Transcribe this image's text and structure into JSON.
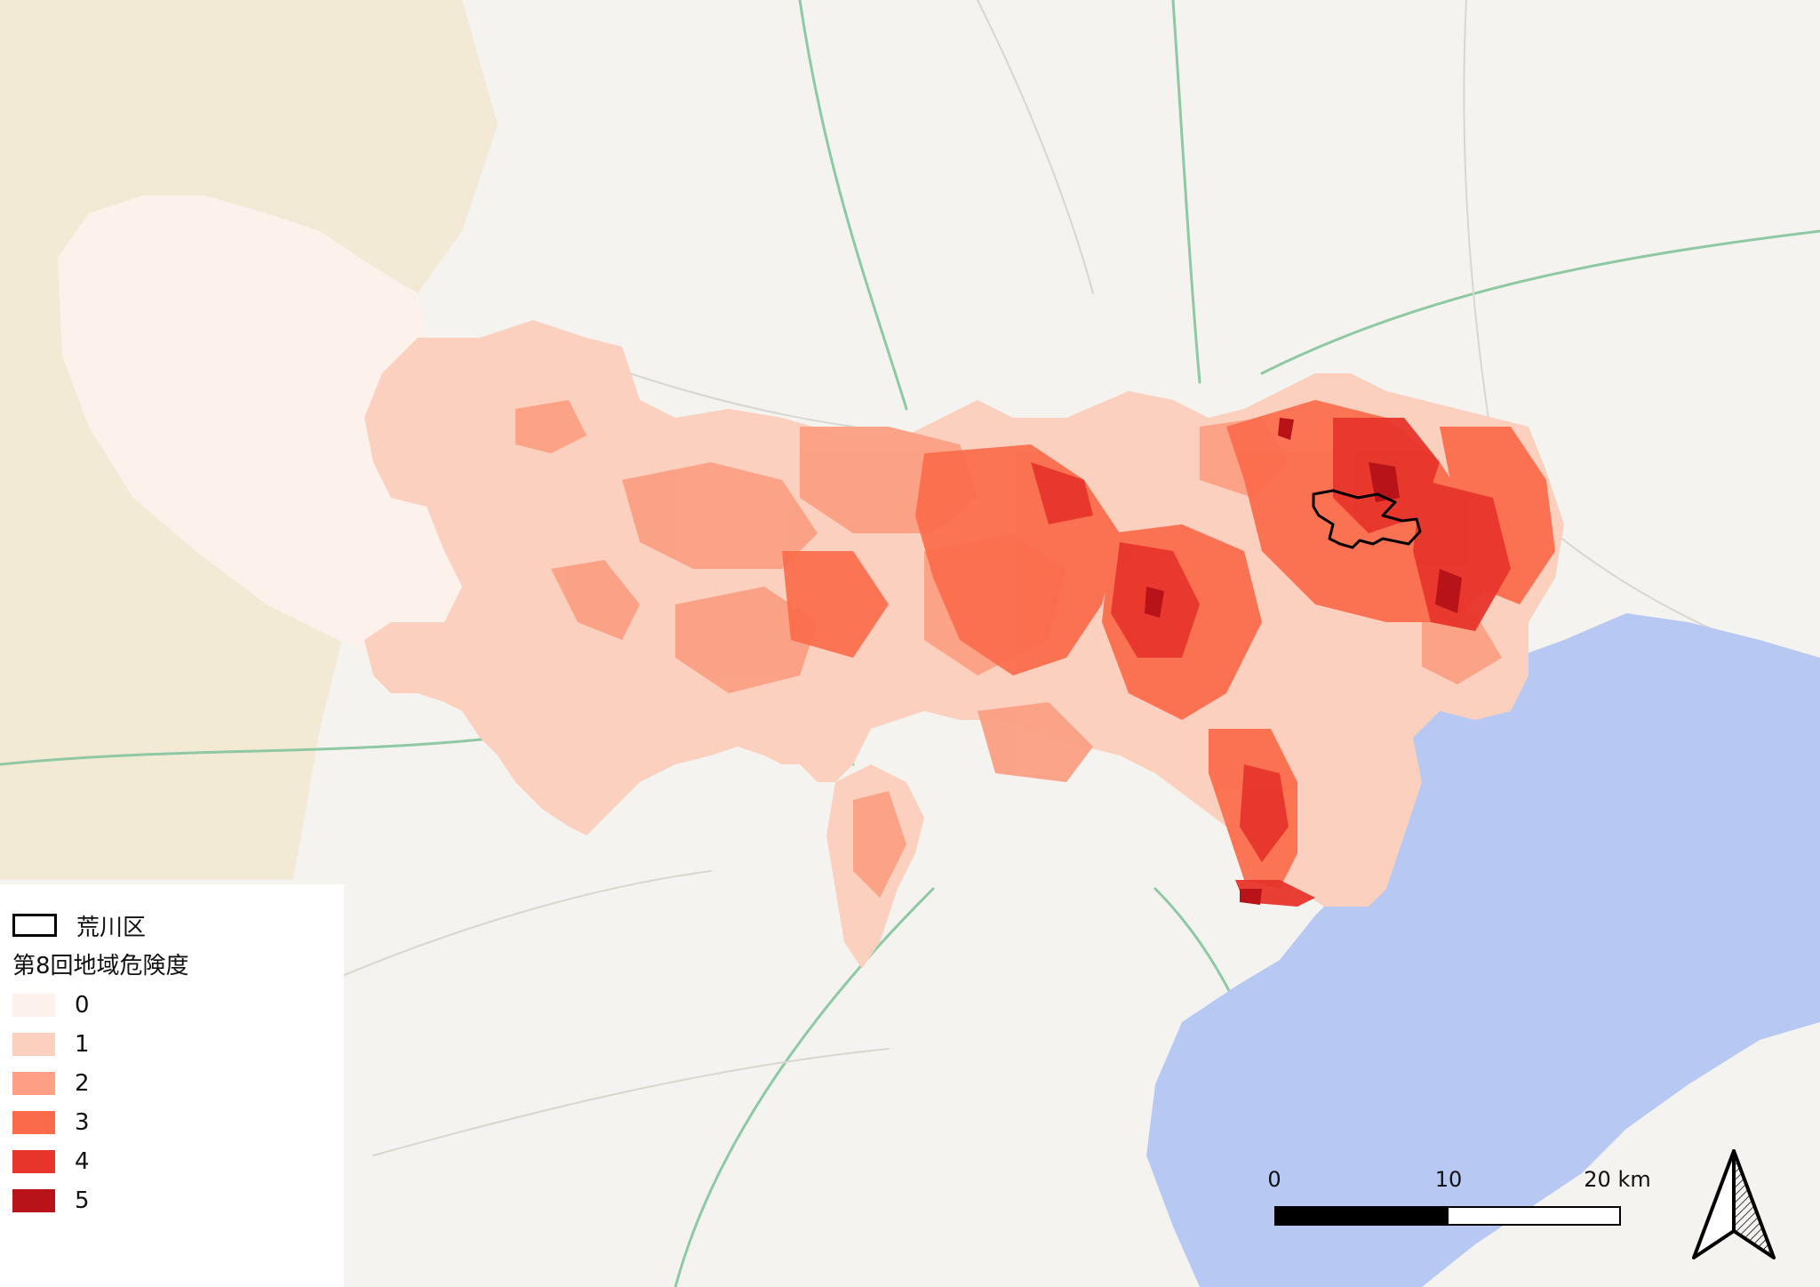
{
  "legend": {
    "outline_label": "荒川区",
    "title": "第8回地域危険度",
    "items": [
      {
        "label": "0",
        "color": "#fdf1ec"
      },
      {
        "label": "1",
        "color": "#fbd0be"
      },
      {
        "label": "2",
        "color": "#fc9f84"
      },
      {
        "label": "3",
        "color": "#fb6b4b"
      },
      {
        "label": "4",
        "color": "#e8352b"
      },
      {
        "label": "5",
        "color": "#b71319"
      }
    ]
  },
  "scale_bar": {
    "labels": [
      "0",
      "10",
      "20 km"
    ]
  },
  "basemap_colors": {
    "land": "#f4f3ef",
    "hills": "#f3ead6",
    "water": "#b7c8f2",
    "road_major": "#8ec9a4",
    "road_minor": "#d9d6ce"
  }
}
